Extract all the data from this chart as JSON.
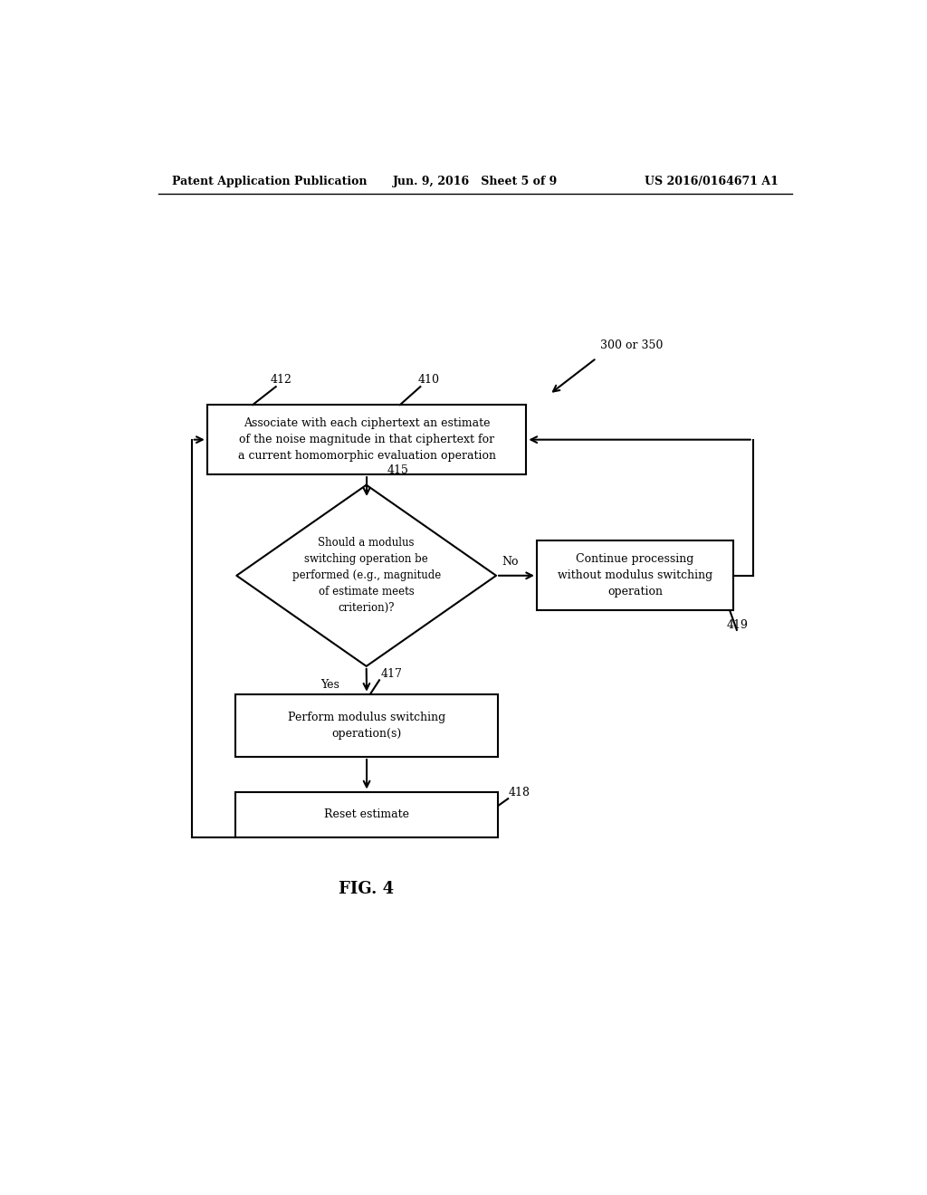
{
  "bg_color": "#ffffff",
  "header_left": "Patent Application Publication",
  "header_mid": "Jun. 9, 2016   Sheet 5 of 9",
  "header_right": "US 2016/0164671 A1",
  "ref_label": "300 or 350",
  "box410_text": "Associate with each ciphertext an estimate\nof the noise magnitude in that ciphertext for\na current homomorphic evaluation operation",
  "box410_label": "410",
  "box412_label": "412",
  "diamond415_text": "Should a modulus\nswitching operation be\nperformed (e.g., magnitude\nof estimate meets\ncriterion)?",
  "diamond415_label": "415",
  "box419_text": "Continue processing\nwithout modulus switching\noperation",
  "box419_label": "419",
  "box417_text": "Perform modulus switching\noperation(s)",
  "box417_label": "417",
  "box418_text": "Reset estimate",
  "box418_label": "418",
  "fig_label": "FIG. 4",
  "yes_label": "Yes",
  "no_label": "No"
}
